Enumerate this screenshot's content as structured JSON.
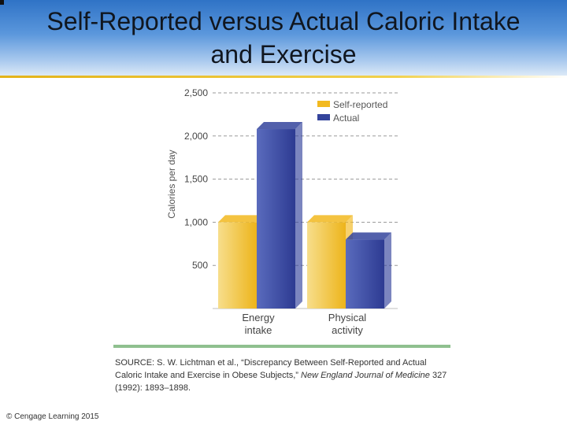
{
  "slide": {
    "title_line1": "Self-Reported versus Actual Caloric Intake",
    "title_line2": "and Exercise",
    "copyright": "© Cengage Learning 2015"
  },
  "source": {
    "prefix": "SOURCE: S. W. Lichtman et al., “Discrepancy Between Self-Reported and Actual Caloric Intake and Exercise in Obese Subjects,” ",
    "journal": "New England Journal of Medicine",
    "suffix": " 327 (1992): 1893–1898."
  },
  "colors": {
    "self_reported": "#f2b91f",
    "actual": "#34449c",
    "gridline": "#9a9a9a",
    "source_rule": "#8fc08f"
  },
  "chart_data": {
    "type": "bar",
    "title": "",
    "xlabel": "",
    "ylabel": "Calories per day",
    "ylim": [
      0,
      2500
    ],
    "yticks": [
      500,
      1000,
      1500,
      2000,
      2500
    ],
    "ytick_labels": [
      "500",
      "1,000",
      "1,500",
      "2,000",
      "2,500"
    ],
    "grid": true,
    "legend_position": "top-right",
    "categories": [
      {
        "line1": "Energy",
        "line2": "intake"
      },
      {
        "line1": "Physical",
        "line2": "activity"
      }
    ],
    "series": [
      {
        "name": "Self-reported",
        "values": [
          1000,
          1000
        ]
      },
      {
        "name": "Actual",
        "values": [
          2080,
          800
        ]
      }
    ]
  }
}
